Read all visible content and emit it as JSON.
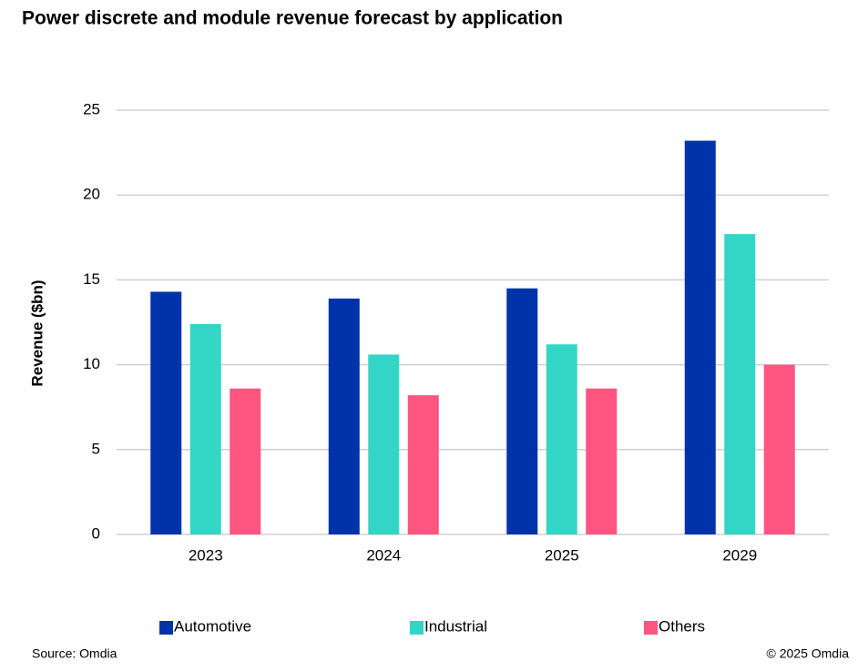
{
  "chart_data": {
    "type": "bar",
    "title": "Power discrete and module revenue forecast by application",
    "y_label": "Revenue ($bn)",
    "categories": [
      "2023",
      "2024",
      "2025",
      "2029"
    ],
    "series": [
      {
        "name": "Automotive",
        "color": "#0033aa",
        "values": [
          14.3,
          13.9,
          14.5,
          23.2
        ]
      },
      {
        "name": "Industrial",
        "color": "#33d6c6",
        "values": [
          12.4,
          10.6,
          11.2,
          17.7
        ]
      },
      {
        "name": "Others",
        "color": "#ff5580",
        "values": [
          8.6,
          8.2,
          8.6,
          10.0
        ]
      }
    ],
    "ylim": [
      0,
      25
    ],
    "yticks": [
      0,
      5,
      10,
      15,
      20,
      25
    ],
    "grid": true,
    "legend": "bottom",
    "source": "Source: Omdia",
    "copyright": "© 2025 Omdia"
  }
}
